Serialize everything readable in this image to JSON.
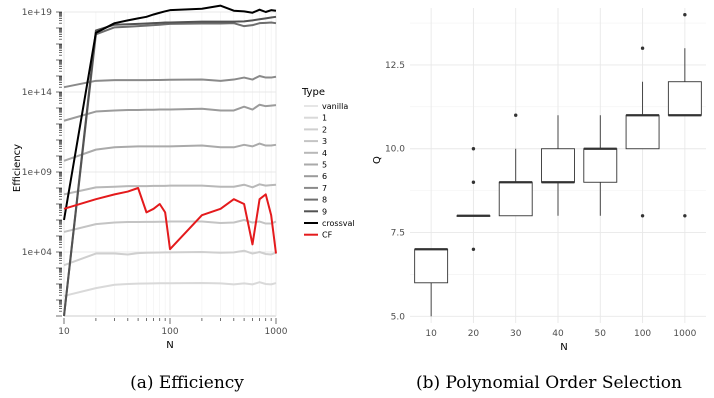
{
  "captions": [
    "(a) Efficiency",
    "(b) Polynomial Order Selection"
  ],
  "chart_data": [
    {
      "type": "line",
      "title": "",
      "xlabel": "N",
      "ylabel": "Efficiency",
      "x_scale": "log",
      "y_scale": "log",
      "xlim": [
        10,
        1000
      ],
      "ylim": [
        1,
        1e+19
      ],
      "x_ticks": [
        "10",
        "100",
        "1000"
      ],
      "y_ticks": [
        "1e+04",
        "1e+09",
        "1e+14",
        "1e+19"
      ],
      "grid": true,
      "legend": {
        "title": "Type",
        "position": "right"
      },
      "x": [
        10,
        20,
        30,
        40,
        50,
        60,
        70,
        80,
        90,
        100,
        200,
        300,
        400,
        500,
        600,
        700,
        800,
        900,
        1000
      ],
      "series": [
        {
          "name": "vanilla",
          "color": "#e6e6e6",
          "values": [
            1,
            1,
            1,
            1,
            1,
            1,
            1,
            1,
            1,
            1,
            1,
            1,
            1,
            1,
            1,
            1,
            1,
            1,
            1
          ]
        },
        {
          "name": "1",
          "color": "#d9d9d9",
          "values": [
            18,
            55,
            90,
            100,
            105,
            108,
            110,
            112,
            112,
            112,
            115,
            110,
            95,
            110,
            95,
            130,
            100,
            95,
            115
          ]
        },
        {
          "name": "2",
          "color": "#cfcfcf",
          "values": [
            1500,
            8000,
            8000,
            7000,
            8500,
            9000,
            9200,
            9300,
            9400,
            9500,
            10000,
            9000,
            9500,
            12000,
            8000,
            10000,
            7500,
            7000,
            9000
          ]
        },
        {
          "name": "3",
          "color": "#c4c4c4",
          "values": [
            180000,
            550000,
            700000,
            750000,
            750000,
            760000,
            770000,
            780000,
            780000,
            800000,
            800000,
            650000,
            700000,
            1000000,
            700000,
            800000,
            600000,
            600000,
            800000
          ]
        },
        {
          "name": "4",
          "color": "#b8b8b8",
          "values": [
            40000000.0,
            110000000.0,
            120000000.0,
            130000000.0,
            130000000.0,
            130000000.0,
            135000000.0,
            135000000.0,
            135000000.0,
            140000000.0,
            140000000.0,
            120000000.0,
            120000000.0,
            160000000.0,
            110000000.0,
            170000000.0,
            140000000.0,
            150000000.0,
            160000000.0
          ]
        },
        {
          "name": "5",
          "color": "#aaaaaa",
          "values": [
            5000000000.0,
            25000000000.0,
            35000000000.0,
            38000000000.0,
            40000000000.0,
            40000000000.0,
            40000000000.0,
            40000000000.0,
            40000000000.0,
            40000000000.0,
            45000000000.0,
            35000000000.0,
            35000000000.0,
            50000000000.0,
            40000000000.0,
            60000000000.0,
            45000000000.0,
            45000000000.0,
            50000000000.0
          ]
        },
        {
          "name": "6",
          "color": "#9b9b9b",
          "values": [
            1600000000000.0,
            6000000000000.0,
            7000000000000.0,
            7500000000000.0,
            7500000000000.0,
            7800000000000.0,
            7800000000000.0,
            8000000000000.0,
            8000000000000.0,
            8000000000000.0,
            9000000000000.0,
            7000000000000.0,
            7000000000000.0,
            12000000000000.0,
            8000000000000.0,
            16000000000000.0,
            13000000000000.0,
            14000000000000.0,
            15000000000000.0
          ]
        },
        {
          "name": "7",
          "color": "#8a8a8a",
          "values": [
            200000000000000.0,
            500000000000000.0,
            550000000000000.0,
            550000000000000.0,
            550000000000000.0,
            550000000000000.0,
            560000000000000.0,
            560000000000000.0,
            570000000000000.0,
            580000000000000.0,
            600000000000000.0,
            500000000000000.0,
            600000000000000.0,
            800000000000000.0,
            600000000000000.0,
            1000000000000000.0,
            800000000000000.0,
            800000000000000.0,
            900000000000000.0
          ]
        },
        {
          "name": "8",
          "color": "#6e6e6e",
          "values": [
            1,
            4e+17,
            1.1e+18,
            1.2e+18,
            1.3e+18,
            1.4e+18,
            1.5e+18,
            1.6e+18,
            1.7e+18,
            1.8e+18,
            1.9e+18,
            1.9e+18,
            2e+18,
            1.3e+18,
            1.5e+18,
            2e+18,
            2.1e+18,
            2.2e+18,
            2e+18
          ]
        },
        {
          "name": "9",
          "color": "#525252",
          "values": [
            1,
            7e+17,
            1.6e+18,
            1.7e+18,
            1.8e+18,
            1.9e+18,
            2e+18,
            2.1e+18,
            2.2e+18,
            2.2e+18,
            2.5e+18,
            2.5e+18,
            2.5e+18,
            2.6e+18,
            3e+18,
            3.5e+18,
            4e+18,
            4.5e+18,
            5e+18
          ]
        },
        {
          "name": "crossval",
          "color": "#000000",
          "values": [
            1000000.0,
            5e+17,
            2e+18,
            3e+18,
            4e+18,
            5e+18,
            7e+18,
            9e+18,
            1.1e+19,
            1.3e+19,
            1.6e+19,
            2.5e+19,
            1.2e+19,
            1.1e+19,
            9e+18,
            1.4e+19,
            1e+19,
            1.3e+19,
            1.2e+19
          ]
        },
        {
          "name": "CF",
          "color": "#e41a1c",
          "values": [
            5000000.0,
            20000000.0,
            40000000.0,
            60000000.0,
            100000000.0,
            3000000.0,
            5000000.0,
            10000000.0,
            3000000.0,
            15000.0,
            2000000.0,
            5000000.0,
            20000000.0,
            10000000.0,
            30000.0,
            20000000.0,
            40000000.0,
            2000000.0,
            8000.0
          ]
        }
      ]
    },
    {
      "type": "box",
      "title": "",
      "xlabel": "N",
      "ylabel": "Q",
      "categories": [
        "10",
        "20",
        "30",
        "40",
        "50",
        "100",
        "1000"
      ],
      "y_ticks": [
        "5.0",
        "7.5",
        "10.0",
        "12.5"
      ],
      "ylim": [
        4.8,
        14.2
      ],
      "grid": true,
      "boxes": [
        {
          "q1": 6,
          "median": 7,
          "q3": 7,
          "whisker_low": 5,
          "whisker_high": 7,
          "outliers": []
        },
        {
          "q1": 8,
          "median": 8,
          "q3": 8,
          "whisker_low": 8,
          "whisker_high": 8,
          "outliers": [
            7,
            9,
            10
          ]
        },
        {
          "q1": 8,
          "median": 9,
          "q3": 9,
          "whisker_low": 8,
          "whisker_high": 10,
          "outliers": [
            11
          ]
        },
        {
          "q1": 9,
          "median": 9,
          "q3": 10,
          "whisker_low": 8,
          "whisker_high": 11,
          "outliers": []
        },
        {
          "q1": 9,
          "median": 10,
          "q3": 10,
          "whisker_low": 8,
          "whisker_high": 11,
          "outliers": []
        },
        {
          "q1": 10,
          "median": 11,
          "q3": 11,
          "whisker_low": 10,
          "whisker_high": 12,
          "outliers": [
            8,
            13
          ]
        },
        {
          "q1": 11,
          "median": 11,
          "q3": 12,
          "whisker_low": 11,
          "whisker_high": 13,
          "outliers": [
            8,
            14
          ]
        }
      ]
    }
  ]
}
